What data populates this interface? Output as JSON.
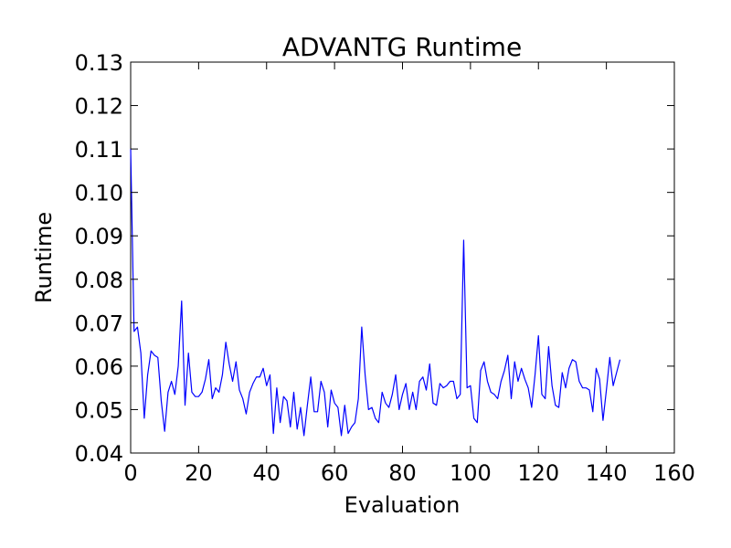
{
  "chart_data": {
    "type": "line",
    "title": "ADVANTG Runtime",
    "xlabel": "Evaluation",
    "ylabel": "Runtime",
    "xlim": [
      0,
      160
    ],
    "ylim": [
      0.04,
      0.13
    ],
    "xticks": [
      0,
      20,
      40,
      60,
      80,
      100,
      120,
      140,
      160
    ],
    "yticks": [
      0.04,
      0.05,
      0.06,
      0.07,
      0.08,
      0.09,
      0.1,
      0.11,
      0.12,
      0.13
    ],
    "xtick_labels": [
      "0",
      "20",
      "40",
      "60",
      "80",
      "100",
      "120",
      "140",
      "160"
    ],
    "ytick_labels": [
      "0.04",
      "0.05",
      "0.06",
      "0.07",
      "0.08",
      "0.09",
      "0.10",
      "0.11",
      "0.12",
      "0.13"
    ],
    "grid": false,
    "line_color": "#0000ff",
    "series": [
      {
        "x": [
          0,
          1,
          2,
          3,
          4,
          5,
          6,
          7,
          8,
          9,
          10,
          11,
          12,
          13,
          14,
          15,
          16,
          17,
          18,
          19,
          20,
          21,
          22,
          23,
          24,
          25,
          26,
          27,
          28,
          29,
          30,
          31,
          32,
          33,
          34,
          35,
          36,
          37,
          38,
          39,
          40,
          41,
          42,
          43,
          44,
          45,
          46,
          47,
          48,
          49,
          50,
          51,
          52,
          53,
          54,
          55,
          56,
          57,
          58,
          59,
          60,
          61,
          62,
          63,
          64,
          65,
          66,
          67,
          68,
          69,
          70,
          71,
          72,
          73,
          74,
          75,
          76,
          77,
          78,
          79,
          80,
          81,
          82,
          83,
          84,
          85,
          86,
          87,
          88,
          89,
          90,
          91,
          92,
          93,
          94,
          95,
          96,
          97,
          98,
          99,
          100,
          101,
          102,
          103,
          104,
          105,
          106,
          107,
          108,
          109,
          110,
          111,
          112,
          113,
          114,
          115,
          116,
          117,
          118,
          119,
          120,
          121,
          122,
          123,
          124,
          125,
          126,
          127,
          128,
          129,
          130,
          131,
          132,
          133,
          134,
          135,
          136,
          137,
          138,
          139,
          140,
          141,
          142,
          143,
          144
        ],
        "values": [
          0.11,
          0.068,
          0.069,
          0.063,
          0.048,
          0.058,
          0.0635,
          0.0625,
          0.062,
          0.052,
          0.045,
          0.054,
          0.0565,
          0.0535,
          0.06,
          0.075,
          0.051,
          0.063,
          0.054,
          0.053,
          0.053,
          0.054,
          0.057,
          0.0615,
          0.0525,
          0.055,
          0.054,
          0.058,
          0.0655,
          0.0605,
          0.0565,
          0.061,
          0.0545,
          0.0525,
          0.049,
          0.054,
          0.056,
          0.0575,
          0.0575,
          0.0595,
          0.0555,
          0.058,
          0.0445,
          0.055,
          0.047,
          0.053,
          0.052,
          0.046,
          0.054,
          0.0455,
          0.0505,
          0.044,
          0.051,
          0.0575,
          0.0495,
          0.0495,
          0.0565,
          0.054,
          0.046,
          0.0545,
          0.0515,
          0.0505,
          0.044,
          0.051,
          0.0445,
          0.046,
          0.047,
          0.0525,
          0.069,
          0.058,
          0.05,
          0.0505,
          0.048,
          0.047,
          0.054,
          0.0515,
          0.0505,
          0.0535,
          0.058,
          0.05,
          0.0535,
          0.056,
          0.05,
          0.054,
          0.05,
          0.0565,
          0.0575,
          0.0545,
          0.0605,
          0.0515,
          0.051,
          0.056,
          0.055,
          0.0555,
          0.0565,
          0.0565,
          0.0525,
          0.0535,
          0.089,
          0.055,
          0.0555,
          0.048,
          0.047,
          0.059,
          0.061,
          0.0565,
          0.054,
          0.0535,
          0.0525,
          0.0565,
          0.059,
          0.0625,
          0.0525,
          0.061,
          0.0565,
          0.0595,
          0.057,
          0.055,
          0.0505,
          0.058,
          0.067,
          0.0535,
          0.0525,
          0.0645,
          0.0555,
          0.051,
          0.0505,
          0.0585,
          0.055,
          0.0595,
          0.0615,
          0.061,
          0.0565,
          0.055,
          0.055,
          0.0545,
          0.0495,
          0.0595,
          0.057,
          0.0475,
          0.0545,
          0.062,
          0.0555,
          0.0585,
          0.0615
        ]
      }
    ]
  }
}
